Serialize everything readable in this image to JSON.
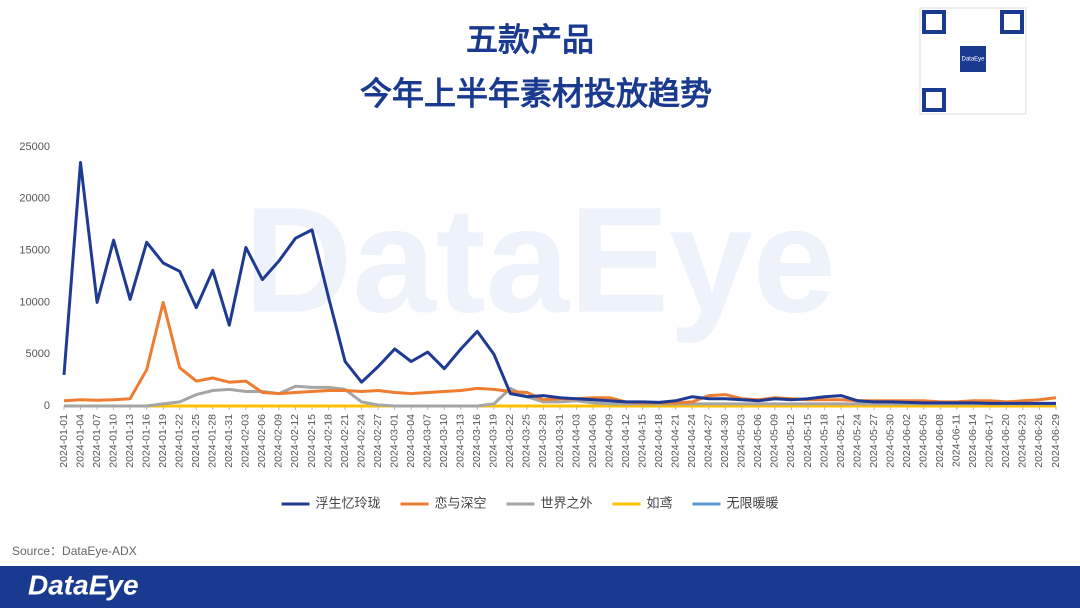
{
  "chart_data": {
    "type": "line",
    "title": "五款产品",
    "subtitle": "今年上半年素材投放趋势",
    "categories": [
      "2024-01-01",
      "2024-01-04",
      "2024-01-07",
      "2024-01-10",
      "2024-01-13",
      "2024-01-16",
      "2024-01-19",
      "2024-01-22",
      "2024-01-25",
      "2024-01-28",
      "2024-01-31",
      "2024-02-03",
      "2024-02-06",
      "2024-02-09",
      "2024-02-12",
      "2024-02-15",
      "2024-02-18",
      "2024-02-21",
      "2024-02-24",
      "2024-02-27",
      "2024-03-01",
      "2024-03-04",
      "2024-03-07",
      "2024-03-10",
      "2024-03-13",
      "2024-03-16",
      "2024-03-19",
      "2024-03-22",
      "2024-03-25",
      "2024-03-28",
      "2024-03-31",
      "2024-04-03",
      "2024-04-06",
      "2024-04-09",
      "2024-04-12",
      "2024-04-15",
      "2024-04-18",
      "2024-04-21",
      "2024-04-24",
      "2024-04-27",
      "2024-04-30",
      "2024-05-03",
      "2024-05-06",
      "2024-05-09",
      "2024-05-12",
      "2024-05-15",
      "2024-05-18",
      "2024-05-21",
      "2024-05-24",
      "2024-05-27",
      "2024-05-30",
      "2024-06-02",
      "2024-06-05",
      "2024-06-08",
      "2024-06-11",
      "2024-06-14",
      "2024-06-17",
      "2024-06-20",
      "2024-06-23",
      "2024-06-26",
      "2024-06-29"
    ],
    "series": [
      {
        "name": "浮生忆玲珑",
        "color": "#1f3a93",
        "values": [
          3000,
          23500,
          10000,
          16000,
          10300,
          15800,
          13800,
          13000,
          9500,
          13100,
          7800,
          15300,
          12200,
          14000,
          16200,
          17000,
          10500,
          4300,
          2300,
          3800,
          5500,
          4300,
          5200,
          3600,
          5500,
          7200,
          5000,
          1200,
          900,
          1000,
          800,
          700,
          600,
          500,
          400,
          400,
          350,
          500,
          900,
          700,
          700,
          600,
          500,
          700,
          600,
          700,
          900,
          1000,
          500,
          400,
          400,
          350,
          300,
          300,
          300,
          300,
          250,
          250,
          250,
          250,
          250
        ]
      },
      {
        "name": "恋与深空",
        "color": "#ed7d31",
        "values": [
          500,
          600,
          550,
          600,
          700,
          3500,
          10000,
          3700,
          2400,
          2700,
          2300,
          2400,
          1300,
          1200,
          1300,
          1400,
          1500,
          1500,
          1400,
          1500,
          1300,
          1200,
          1300,
          1400,
          1500,
          1700,
          1600,
          1400,
          1300,
          600,
          700,
          700,
          800,
          800,
          400,
          300,
          300,
          300,
          400,
          1000,
          1100,
          700,
          600,
          800,
          700,
          600,
          600,
          600,
          500,
          500,
          500,
          500,
          500,
          400,
          400,
          500,
          500,
          400,
          500,
          600,
          800
        ]
      },
      {
        "name": "世界之外",
        "color": "#a5a5a5",
        "values": [
          0,
          0,
          0,
          0,
          0,
          0,
          200,
          400,
          1100,
          1500,
          1600,
          1400,
          1400,
          1200,
          1900,
          1800,
          1800,
          1600,
          400,
          100,
          0,
          0,
          0,
          0,
          0,
          0,
          200,
          1700,
          900,
          400,
          400,
          500,
          300,
          200,
          200,
          200,
          200,
          200,
          200,
          200,
          200,
          200,
          200,
          200,
          200,
          200,
          200,
          200,
          200,
          200,
          200,
          200,
          200,
          200,
          200,
          200,
          200,
          200,
          200,
          200,
          200
        ]
      },
      {
        "name": "如鸢",
        "color": "#ffc000",
        "values": [
          0,
          0,
          0,
          0,
          0,
          0,
          0,
          0,
          0,
          0,
          0,
          0,
          0,
          0,
          0,
          0,
          0,
          0,
          0,
          0,
          0,
          0,
          0,
          0,
          0,
          0,
          0,
          0,
          0,
          0,
          0,
          0,
          0,
          0,
          0,
          0,
          0,
          0,
          0,
          0,
          0,
          0,
          0,
          0,
          0,
          0,
          0,
          0,
          0,
          0,
          0,
          0,
          0,
          0,
          0,
          0,
          0,
          0,
          0,
          0,
          0
        ]
      },
      {
        "name": "无限暖暖",
        "color": "#5b9bd5",
        "values": [
          0,
          0,
          0,
          0,
          0,
          0,
          0,
          0,
          0,
          0,
          0,
          0,
          0,
          0,
          0,
          0,
          0,
          0,
          0,
          0,
          0,
          0,
          0,
          0,
          0,
          0,
          0,
          0,
          0,
          0,
          0,
          0,
          0,
          0,
          0,
          0,
          0,
          0,
          0,
          0,
          0,
          0,
          0,
          0,
          0,
          0,
          0,
          0,
          0,
          0,
          100,
          100,
          100,
          100,
          100,
          150,
          150,
          150,
          150,
          150,
          150
        ]
      }
    ],
    "ylim": [
      0,
      25000
    ],
    "yticks": [
      0,
      5000,
      10000,
      15000,
      20000,
      25000
    ],
    "legend": "bottom"
  },
  "source": "Source：DataEye-ADX",
  "watermark": "DataEye",
  "footer_brand": "DataEye",
  "qr_label": "DataEye"
}
